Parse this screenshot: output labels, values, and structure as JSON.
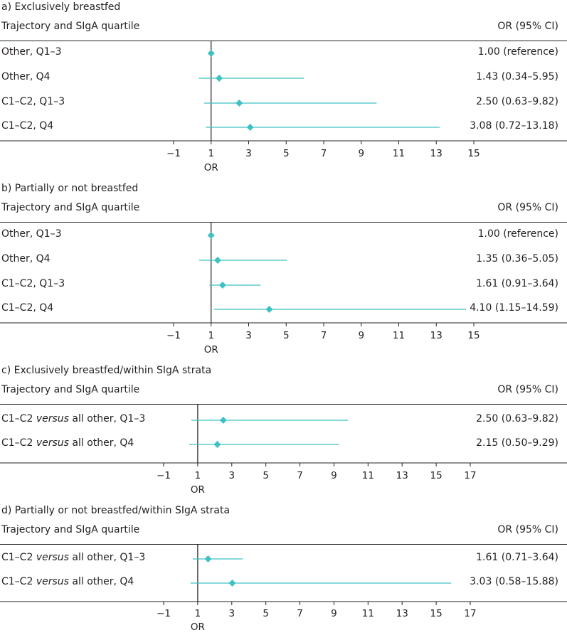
{
  "chart_data": [
    {
      "type": "forest",
      "title": "a) Exclusively breastfed",
      "col_left": "Trajectory and SIgA quartile",
      "col_right": "OR (95% CI)",
      "xlabel": "OR",
      "ticks": [
        -1,
        1,
        3,
        5,
        7,
        9,
        11,
        13,
        15
      ],
      "tick_labels": [
        "−1",
        "1",
        "3",
        "5",
        "7",
        "9",
        "11",
        "13",
        "15"
      ],
      "xlim": [
        -1,
        15
      ],
      "reference": 1,
      "rows": [
        {
          "label": "Other, Q1–3",
          "label_suffix": "",
          "or": 1.0,
          "lo": null,
          "hi": null,
          "text": "1.00 (reference)"
        },
        {
          "label": "Other, Q4",
          "label_suffix": "",
          "or": 1.43,
          "lo": 0.34,
          "hi": 5.95,
          "text": "1.43 (0.34–5.95)"
        },
        {
          "label": "C1–C2, Q1–3",
          "label_suffix": "",
          "or": 2.5,
          "lo": 0.63,
          "hi": 9.82,
          "text": "2.50 (0.63–9.82)"
        },
        {
          "label": "C1–C2, Q4",
          "label_suffix": "",
          "or": 3.08,
          "lo": 0.72,
          "hi": 13.18,
          "text": "3.08 (0.72–13.18)"
        }
      ]
    },
    {
      "type": "forest",
      "title": "b) Partially or not breastfed",
      "col_left": "Trajectory and SIgA quartile",
      "col_right": "OR (95% CI)",
      "xlabel": "OR",
      "ticks": [
        -1,
        1,
        3,
        5,
        7,
        9,
        11,
        13,
        15
      ],
      "tick_labels": [
        "−1",
        "1",
        "3",
        "5",
        "7",
        "9",
        "11",
        "13",
        "15"
      ],
      "xlim": [
        -1,
        15
      ],
      "reference": 1,
      "rows": [
        {
          "label": "Other, Q1–3",
          "label_suffix": "",
          "or": 1.0,
          "lo": null,
          "hi": null,
          "text": "1.00 (reference)"
        },
        {
          "label": "Other, Q4",
          "label_suffix": "",
          "or": 1.35,
          "lo": 0.36,
          "hi": 5.05,
          "text": "1.35 (0.36–5.05)"
        },
        {
          "label": "C1–C2, Q1–3",
          "label_suffix": "",
          "or": 1.61,
          "lo": 0.91,
          "hi": 3.64,
          "text": "1.61 (0.91–3.64)"
        },
        {
          "label": "C1–C2, Q4",
          "label_suffix": "",
          "or": 4.1,
          "lo": 1.15,
          "hi": 14.59,
          "text": "4.10 (1.15–14.59)"
        }
      ]
    },
    {
      "type": "forest",
      "title": "c) Exclusively breastfed/within SIgA strata",
      "col_left": "Trajectory and SIgA quartile",
      "col_right": "OR (95% CI)",
      "xlabel": "OR",
      "ticks": [
        -1,
        1,
        3,
        5,
        7,
        9,
        11,
        13,
        15,
        17
      ],
      "tick_labels": [
        "−1",
        "1",
        "3",
        "5",
        "7",
        "9",
        "11",
        "13",
        "15",
        "17"
      ],
      "xlim": [
        -1,
        17
      ],
      "reference": 1,
      "rows": [
        {
          "label": "C1–C2 ",
          "label_italic": "versus",
          "label_suffix": " all other, Q1–3",
          "or": 2.5,
          "lo": 0.63,
          "hi": 9.82,
          "text": "2.50 (0.63–9.82)"
        },
        {
          "label": "C1–C2 ",
          "label_italic": "versus",
          "label_suffix": " all other, Q4",
          "or": 2.15,
          "lo": 0.5,
          "hi": 9.29,
          "text": "2.15 (0.50–9.29)"
        }
      ]
    },
    {
      "type": "forest",
      "title": "d) Partially or not breastfed/within SIgA strata",
      "col_left": "Trajectory and SIgA quartile",
      "col_right": "OR (95% CI)",
      "xlabel": "OR",
      "ticks": [
        -1,
        1,
        3,
        5,
        7,
        9,
        11,
        13,
        15,
        17
      ],
      "tick_labels": [
        "−1",
        "1",
        "3",
        "5",
        "7",
        "9",
        "11",
        "13",
        "15",
        "17"
      ],
      "xlim": [
        -1,
        17
      ],
      "reference": 1,
      "rows": [
        {
          "label": "C1–C2 ",
          "label_italic": "versus",
          "label_suffix": " all other, Q1–3",
          "or": 1.61,
          "lo": 0.71,
          "hi": 3.64,
          "text": "1.61 (0.71–3.64)"
        },
        {
          "label": "C1–C2 ",
          "label_italic": "versus",
          "label_suffix": " all other, Q4",
          "or": 3.03,
          "lo": 0.58,
          "hi": 15.88,
          "text": "3.03 (0.58–15.88)"
        }
      ]
    }
  ],
  "colors": {
    "marker": "#3fc1c4",
    "ci_line": "#3fc1c4",
    "axis": "#231f20",
    "text": "#231f20"
  }
}
